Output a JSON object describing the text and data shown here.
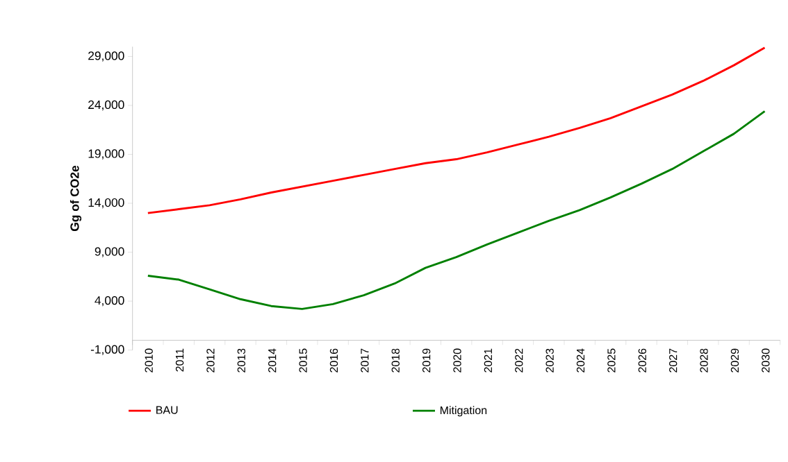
{
  "chart_data": {
    "type": "line",
    "ylabel": "Gg of CO2e",
    "categories": [
      "2010",
      "2011",
      "2012",
      "2013",
      "2014",
      "2015",
      "2016",
      "2017",
      "2018",
      "2019",
      "2020",
      "2021",
      "2022",
      "2023",
      "2024",
      "2025",
      "2026",
      "2027",
      "2028",
      "2029",
      "2030"
    ],
    "series": [
      {
        "name": "BAU",
        "color": "#ff0000",
        "values": [
          13000,
          13400,
          13800,
          14400,
          15100,
          15700,
          16300,
          16900,
          17500,
          18100,
          18500,
          19200,
          20000,
          20800,
          21700,
          22700,
          23900,
          25100,
          26500,
          28100,
          29900
        ]
      },
      {
        "name": "Mitigation",
        "color": "#008000",
        "values": [
          6600,
          6200,
          5200,
          4200,
          3500,
          3200,
          3700,
          4600,
          5800,
          7400,
          8500,
          9800,
          11000,
          12200,
          13300,
          14600,
          16000,
          17500,
          19300,
          21100,
          23400
        ]
      }
    ],
    "ylim": [
      -1000,
      30000
    ],
    "yticks": [
      {
        "value": -1000,
        "label": "-1,000"
      },
      {
        "value": 4000,
        "label": "4,000"
      },
      {
        "value": 9000,
        "label": "9,000"
      },
      {
        "value": 14000,
        "label": "14,000"
      },
      {
        "value": 19000,
        "label": "19,000"
      },
      {
        "value": 24000,
        "label": "24,000"
      },
      {
        "value": 29000,
        "label": "29,000"
      }
    ],
    "legend": "bottom",
    "grid": false
  }
}
